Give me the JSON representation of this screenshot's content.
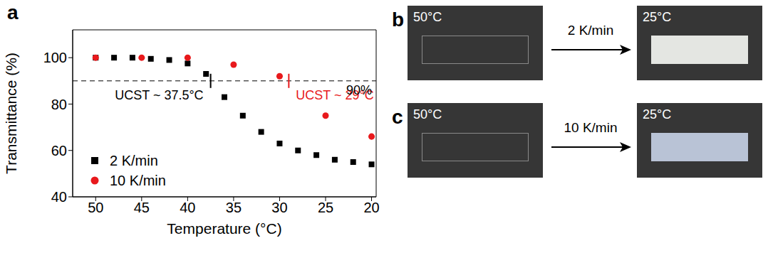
{
  "chart_data": {
    "type": "scatter",
    "panel": "a",
    "x_label": "Temperature (°C)",
    "y_label": "Transmittance (%)",
    "xlim": [
      52.5,
      19.5
    ],
    "xticks": [
      50,
      45,
      40,
      35,
      30,
      25,
      20
    ],
    "ylim": [
      40,
      112
    ],
    "yticks": [
      40,
      60,
      80,
      100
    ],
    "grid": false,
    "legend": "lower left",
    "series": [
      {
        "name": "2 K/min",
        "color": "#000000",
        "marker": "square",
        "x": [
          50,
          48,
          46,
          44,
          42,
          40,
          38,
          36,
          34,
          32,
          30,
          28,
          26,
          24,
          22,
          20
        ],
        "values": [
          100,
          100,
          100,
          99.5,
          99,
          97.5,
          93,
          83,
          75,
          68,
          63,
          60,
          58,
          56,
          55,
          54
        ]
      },
      {
        "name": "10 K/min",
        "color": "#e8191c",
        "marker": "circle",
        "x": [
          50,
          45,
          40,
          35,
          30,
          25,
          20
        ],
        "values": [
          100,
          100,
          100,
          97,
          92,
          75,
          66
        ]
      }
    ],
    "reference_line": {
      "y": 90,
      "label": "90%",
      "line_style": "dashed"
    },
    "ucst": [
      {
        "value": 37.5,
        "label": "UCST ~ 37.5°C",
        "color": "#000000"
      },
      {
        "value": 29,
        "label": "UCST ~ 29°C",
        "color": "#e8191c"
      }
    ]
  },
  "panels": [
    {
      "label": "b",
      "start": "50°C",
      "rate": "2 K/min",
      "end": "25°C",
      "color": "#e4e6e2"
    },
    {
      "label": "c",
      "start": "50°C",
      "rate": "10 K/min",
      "end": "25°C",
      "color": "#b9c3d6"
    }
  ]
}
